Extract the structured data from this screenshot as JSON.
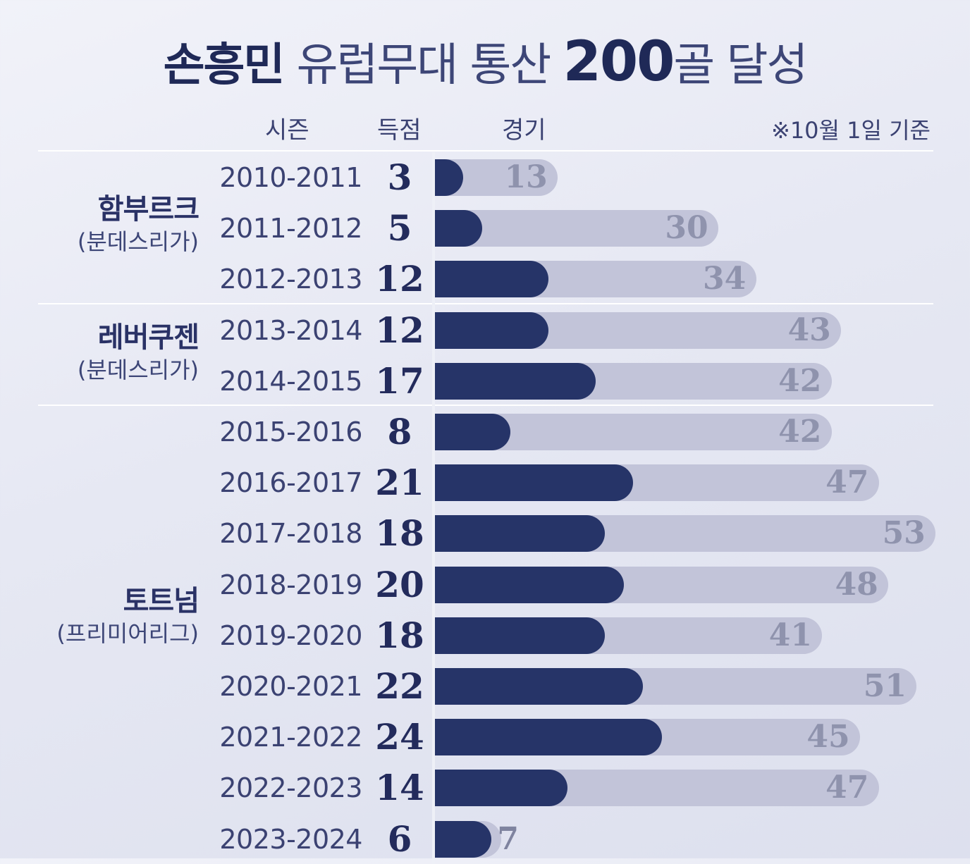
{
  "title": {
    "name": "손흥민",
    "middle": "유럽무대 통산",
    "number": "200",
    "unit": "골",
    "end": "달성"
  },
  "headers": {
    "season": "시즌",
    "goals": "득점",
    "games": "경기"
  },
  "note": "※10월 1일 기준",
  "teams": [
    {
      "name": "함부르크",
      "league": "(분데스리가)"
    },
    {
      "name": "레버쿠젠",
      "league": "(분데스리가)"
    },
    {
      "name": "토트넘",
      "league": "(프리미어리그)"
    }
  ],
  "colors": {
    "goals_bar": "#263468",
    "games_bar": "#c2c4d9",
    "games_text": "#8f93ad"
  },
  "chart_data": {
    "type": "bar",
    "categories": [
      "2010-2011",
      "2011-2012",
      "2012-2013",
      "2013-2014",
      "2014-2015",
      "2015-2016",
      "2016-2017",
      "2017-2018",
      "2018-2019",
      "2019-2020",
      "2020-2021",
      "2021-2022",
      "2022-2023",
      "2023-2024"
    ],
    "series": [
      {
        "name": "득점",
        "values": [
          3,
          5,
          12,
          12,
          17,
          8,
          21,
          18,
          20,
          18,
          22,
          24,
          14,
          6
        ]
      },
      {
        "name": "경기",
        "values": [
          13,
          30,
          34,
          43,
          42,
          42,
          47,
          53,
          48,
          41,
          51,
          45,
          47,
          7
        ]
      }
    ],
    "xlabel": "",
    "ylabel": ""
  }
}
